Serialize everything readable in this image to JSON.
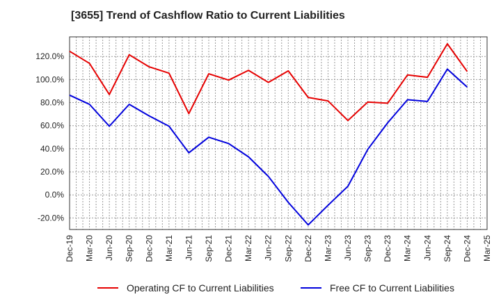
{
  "chart_data": {
    "type": "line",
    "title": "[3655]  Trend of Cashflow Ratio to Current Liabilities",
    "xlabel": "",
    "ylabel": "",
    "x_ticks": [
      "Dec-19",
      "Mar-20",
      "Jun-20",
      "Sep-20",
      "Dec-20",
      "Mar-21",
      "Jun-21",
      "Sep-21",
      "Dec-21",
      "Mar-22",
      "Jun-22",
      "Sep-22",
      "Dec-22",
      "Mar-23",
      "Jun-23",
      "Sep-23",
      "Dec-23",
      "Mar-24",
      "Jun-24",
      "Sep-24",
      "Dec-24",
      "Mar-25"
    ],
    "y_ticks": [
      120,
      100,
      80,
      60,
      40,
      20,
      0,
      -20
    ],
    "y_tick_labels": [
      "120.0%",
      "100.0%",
      "80.0%",
      "60.0%",
      "40.0%",
      "20.0%",
      "0.0%",
      "-20.0%"
    ],
    "ylim": [
      -30,
      137
    ],
    "grid": true,
    "legend_position": "bottom",
    "series": [
      {
        "name": "Operating CF to Current Liabilities",
        "color": "#e60000",
        "points": [
          [
            "Dec-19",
            124.5
          ],
          [
            "Mar-20",
            114.0
          ],
          [
            "Jun-20",
            87.0
          ],
          [
            "Sep-20",
            121.5
          ],
          [
            "Dec-20",
            111.0
          ],
          [
            "Mar-21",
            105.5
          ],
          [
            "Jun-21",
            70.5
          ],
          [
            "Sep-21",
            105.0
          ],
          [
            "Dec-21",
            99.5
          ],
          [
            "Mar-22",
            108.0
          ],
          [
            "Jun-22",
            97.5
          ],
          [
            "Sep-22",
            107.5
          ],
          [
            "Dec-22",
            84.5
          ],
          [
            "Mar-23",
            81.5
          ],
          [
            "Jun-23",
            64.5
          ],
          [
            "Sep-23",
            80.5
          ],
          [
            "Dec-23",
            79.5
          ],
          [
            "Mar-24",
            104.0
          ],
          [
            "Jun-24",
            102.0
          ],
          [
            "Sep-24",
            131.0
          ],
          [
            "Dec-24",
            107.0
          ]
        ]
      },
      {
        "name": "Free CF to Current Liabilities",
        "color": "#0000dd",
        "points": [
          [
            "Dec-19",
            86.5
          ],
          [
            "Mar-20",
            78.5
          ],
          [
            "Jun-20",
            59.5
          ],
          [
            "Sep-20",
            78.5
          ],
          [
            "Dec-20",
            68.5
          ],
          [
            "Mar-21",
            59.5
          ],
          [
            "Jun-21",
            36.5
          ],
          [
            "Sep-21",
            50.0
          ],
          [
            "Dec-21",
            44.5
          ],
          [
            "Mar-22",
            33.0
          ],
          [
            "Jun-22",
            16.0
          ],
          [
            "Sep-22",
            -6.5
          ],
          [
            "Dec-22",
            -26.0
          ],
          [
            "Mar-23",
            -9.0
          ],
          [
            "Jun-23",
            7.5
          ],
          [
            "Sep-23",
            39.5
          ],
          [
            "Dec-23",
            62.5
          ],
          [
            "Mar-24",
            82.5
          ],
          [
            "Jun-24",
            81.0
          ],
          [
            "Sep-24",
            109.0
          ],
          [
            "Dec-24",
            93.5
          ]
        ]
      }
    ]
  }
}
